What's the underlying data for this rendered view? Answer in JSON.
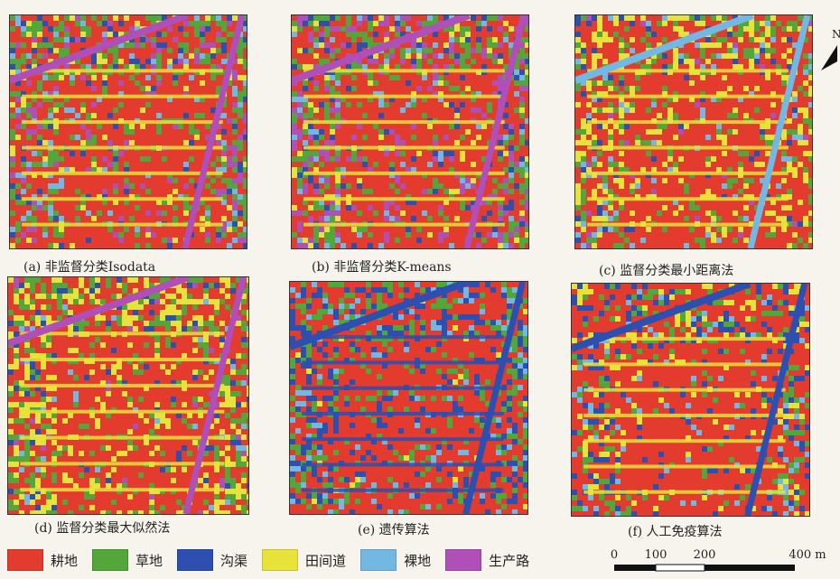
{
  "panels": [
    {
      "caption": "(a) 非监督分类Isodata",
      "palette": [
        "#e33b2e",
        "#52a63a",
        "#2c4fb0",
        "#e8e33a",
        "#73b8e3",
        "#b04fb8"
      ],
      "base": "#e33b2e"
    },
    {
      "caption": "(b) 非监督分类K-means",
      "palette": [
        "#e33b2e",
        "#52a63a",
        "#2c4fb0",
        "#e8e33a",
        "#73b8e3",
        "#b04fb8"
      ],
      "base": "#e33b2e"
    },
    {
      "caption": "(c) 监督分类最小距离法",
      "palette": [
        "#e33b2e",
        "#52a63a",
        "#2c4fb0",
        "#e8e33a",
        "#73b8e3",
        "#b04fb8"
      ],
      "base": "#e33b2e"
    },
    {
      "caption": "(d) 监督分类最大似然法",
      "palette": [
        "#e33b2e",
        "#52a63a",
        "#2c4fb0",
        "#e8e33a",
        "#73b8e3",
        "#b04fb8"
      ],
      "base": "#e33b2e"
    },
    {
      "caption": "(e) 遗传算法",
      "palette": [
        "#e33b2e",
        "#52a63a",
        "#2c4fb0",
        "#e8e33a",
        "#73b8e3",
        "#b04fb8"
      ],
      "base": "#e33b2e"
    },
    {
      "caption": "(f) 人工免疫算法",
      "palette": [
        "#e33b2e",
        "#52a63a",
        "#2c4fb0",
        "#e8e33a",
        "#73b8e3",
        "#b04fb8"
      ],
      "base": "#e33b2e"
    }
  ],
  "legend": [
    {
      "label": "耕地",
      "color": "#e33b2e"
    },
    {
      "label": "草地",
      "color": "#52a63a"
    },
    {
      "label": "沟渠",
      "color": "#2c4fb0"
    },
    {
      "label": "田间道",
      "color": "#e8e33a"
    },
    {
      "label": "裸地",
      "color": "#73b8e3"
    },
    {
      "label": "生产路",
      "color": "#b04fb8"
    }
  ],
  "scale_bar": {
    "ticks": [
      "0",
      "100",
      "200",
      "400 m"
    ]
  },
  "north_arrow": {
    "label": "N"
  }
}
